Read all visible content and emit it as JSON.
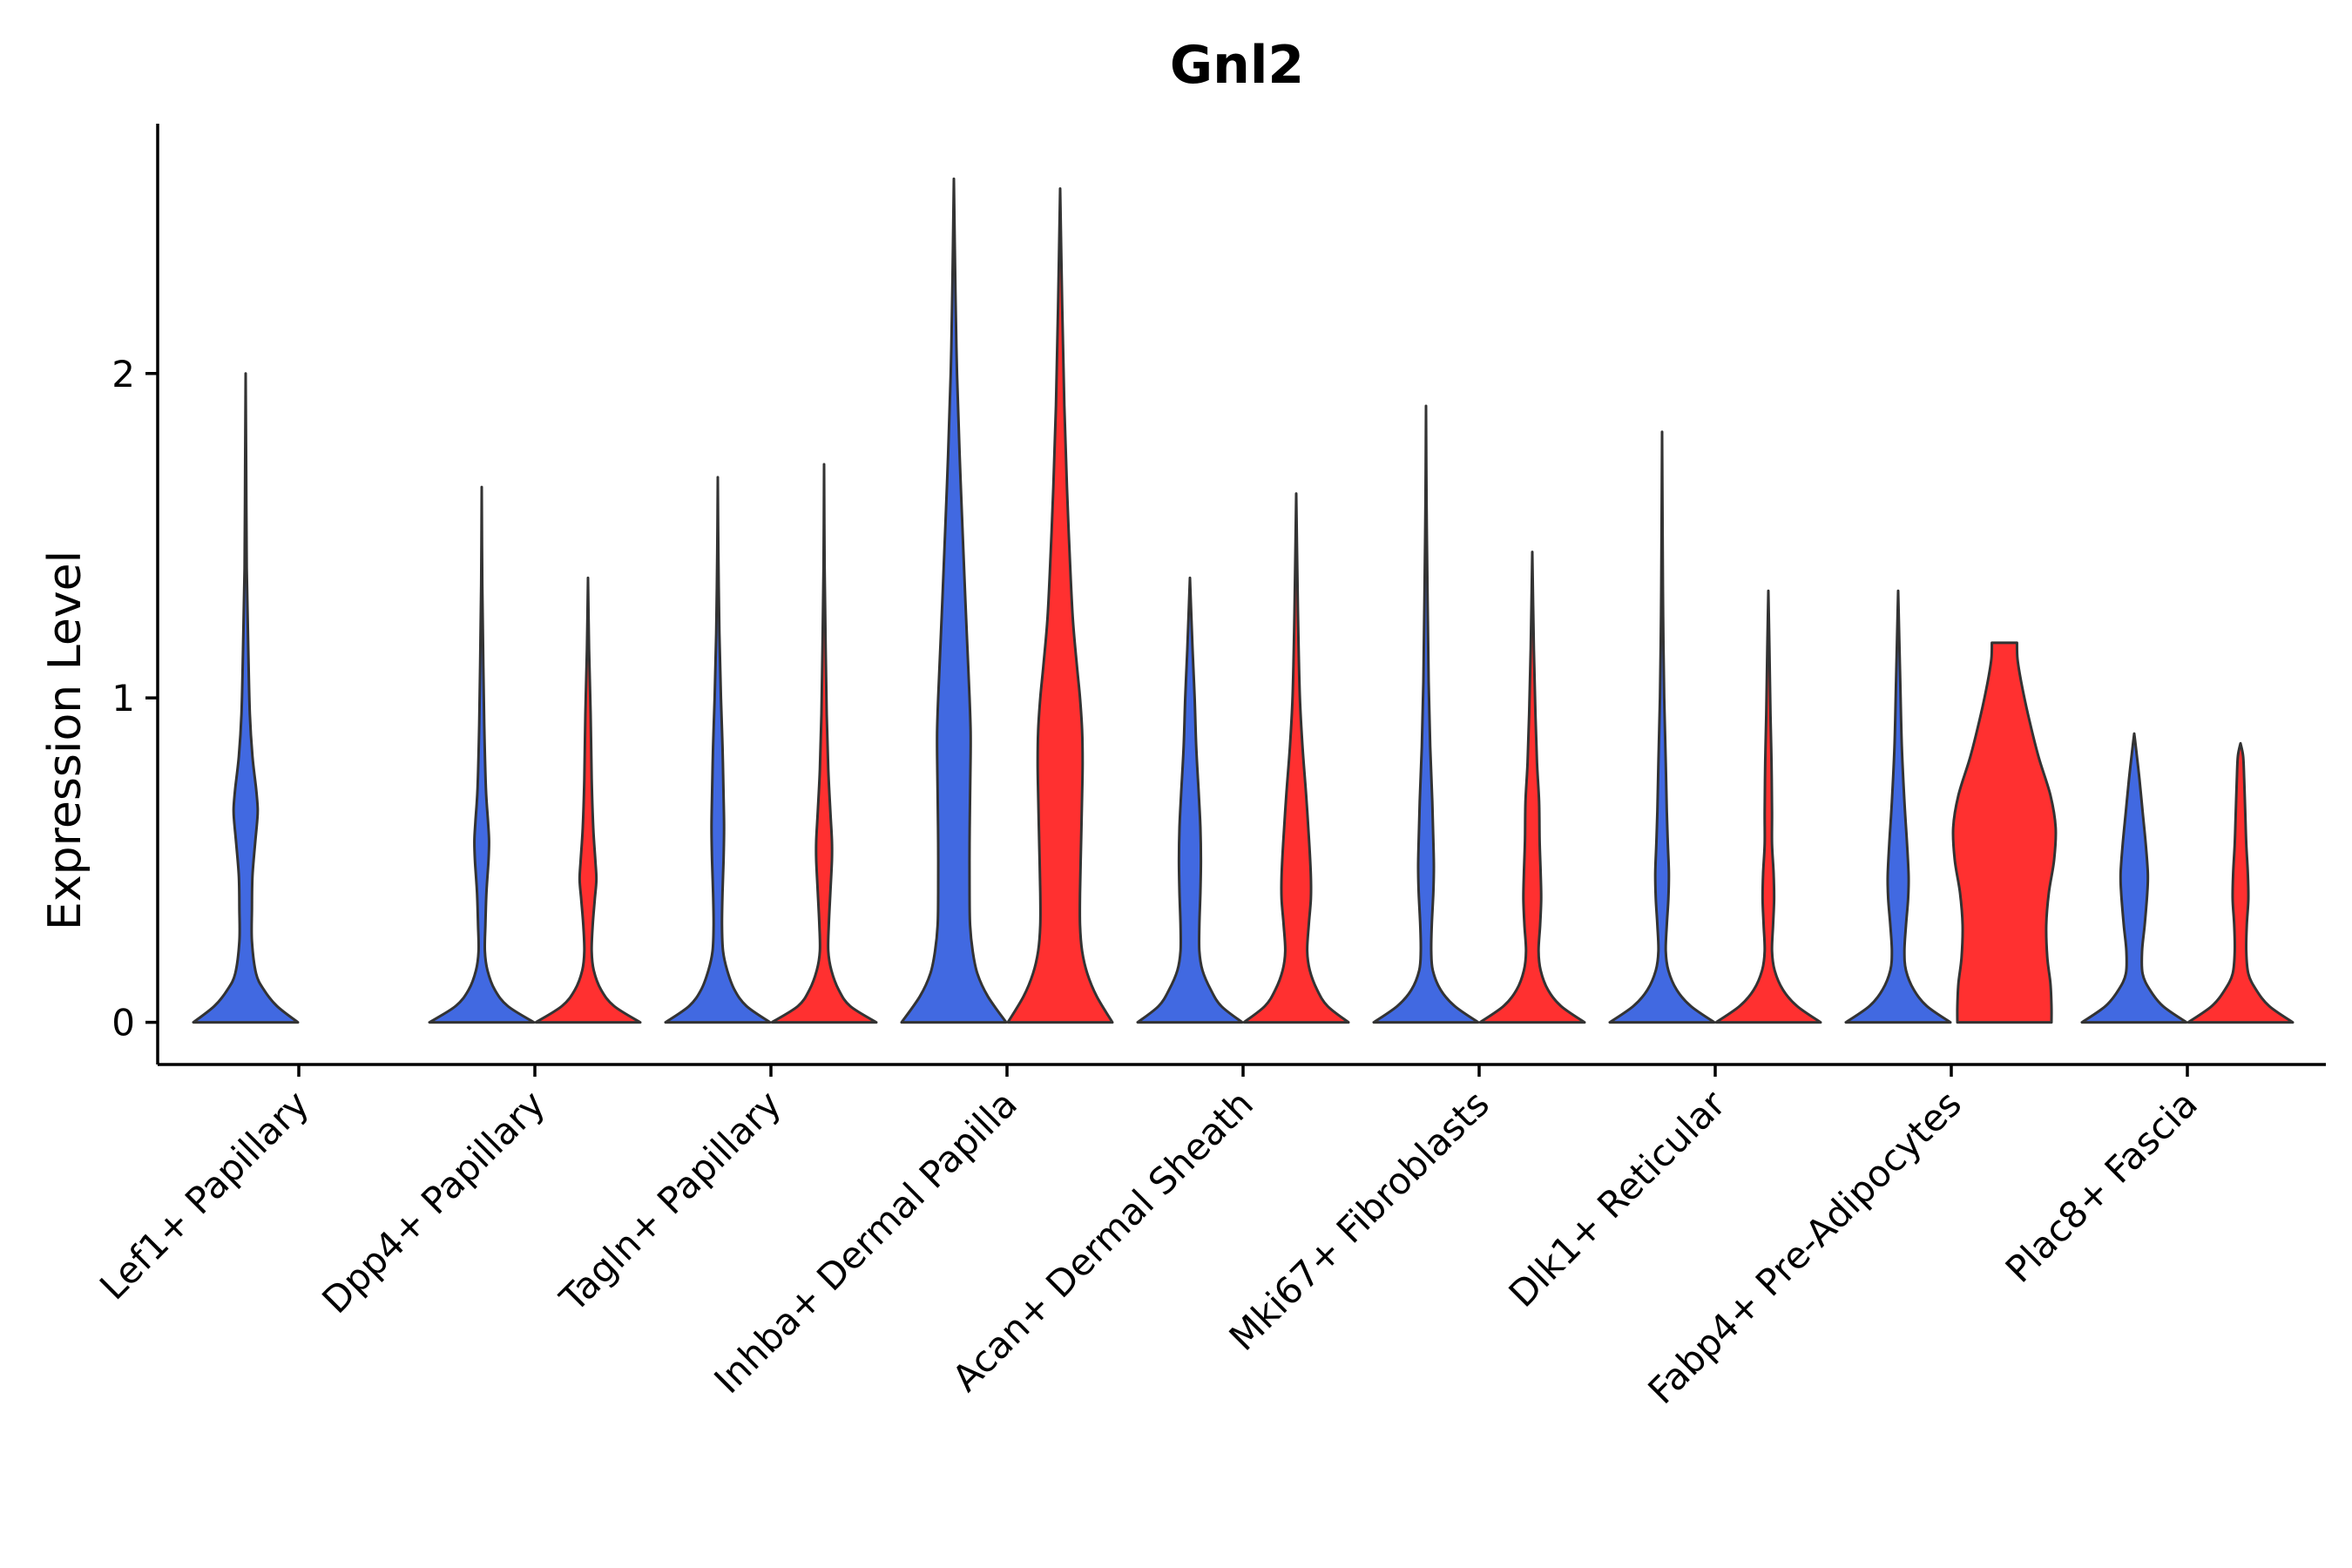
{
  "chart_data": {
    "type": "violin",
    "title": "Gnl2",
    "xlabel": "",
    "ylabel": "Expression Level",
    "ylim": [
      -0.13,
      2.77
    ],
    "yticks": [
      0,
      1,
      2
    ],
    "grid": false,
    "legend": "none",
    "colors": {
      "group1": "#4169E1",
      "group2": "#FF3030",
      "outline": "#333333"
    },
    "categories": [
      "Lef1+ Papillary",
      "Dpp4+ Papillary",
      "Tagln+ Papillary",
      "Inhba+ Dermal Papilla",
      "Acan+ Dermal Sheath",
      "Mki67+ Fibroblasts",
      "Dlk1+ Reticular",
      "Fabp4+ Pre-Adipocytes",
      "Plac8+ Fascia"
    ],
    "violins": [
      {
        "category": "Lef1+ Papillary",
        "group": "group1",
        "max": 2.0,
        "profile": [
          [
            0,
            1.0
          ],
          [
            0.05,
            0.6
          ],
          [
            0.1,
            0.35
          ],
          [
            0.15,
            0.2
          ],
          [
            0.25,
            0.12
          ],
          [
            0.35,
            0.12
          ],
          [
            0.45,
            0.13
          ],
          [
            0.55,
            0.18
          ],
          [
            0.62,
            0.22
          ],
          [
            0.66,
            0.23
          ],
          [
            0.72,
            0.2
          ],
          [
            0.82,
            0.13
          ],
          [
            0.95,
            0.08
          ],
          [
            1.15,
            0.05
          ],
          [
            1.4,
            0.02
          ],
          [
            1.7,
            0.01
          ],
          [
            2.0,
            0.0
          ]
        ]
      },
      {
        "category": "Dpp4+ Papillary",
        "group": "group1",
        "max": 1.65,
        "profile": [
          [
            0,
            1.0
          ],
          [
            0.05,
            0.5
          ],
          [
            0.1,
            0.25
          ],
          [
            0.16,
            0.11
          ],
          [
            0.22,
            0.06
          ],
          [
            0.3,
            0.07
          ],
          [
            0.4,
            0.09
          ],
          [
            0.5,
            0.13
          ],
          [
            0.56,
            0.14
          ],
          [
            0.62,
            0.12
          ],
          [
            0.72,
            0.08
          ],
          [
            0.9,
            0.05
          ],
          [
            1.1,
            0.03
          ],
          [
            1.35,
            0.01
          ],
          [
            1.65,
            0.0
          ]
        ]
      },
      {
        "category": "Dpp4+ Papillary",
        "group": "group2",
        "max": 1.37,
        "profile": [
          [
            0,
            1.0
          ],
          [
            0.05,
            0.5
          ],
          [
            0.1,
            0.25
          ],
          [
            0.16,
            0.11
          ],
          [
            0.22,
            0.07
          ],
          [
            0.3,
            0.09
          ],
          [
            0.38,
            0.13
          ],
          [
            0.44,
            0.16
          ],
          [
            0.5,
            0.14
          ],
          [
            0.6,
            0.1
          ],
          [
            0.75,
            0.07
          ],
          [
            0.95,
            0.05
          ],
          [
            1.15,
            0.02
          ],
          [
            1.37,
            0.0
          ]
        ]
      },
      {
        "category": "Tagln+ Papillary",
        "group": "group1",
        "max": 1.68,
        "profile": [
          [
            0,
            1.0
          ],
          [
            0.05,
            0.55
          ],
          [
            0.1,
            0.32
          ],
          [
            0.16,
            0.18
          ],
          [
            0.22,
            0.1
          ],
          [
            0.3,
            0.08
          ],
          [
            0.4,
            0.09
          ],
          [
            0.5,
            0.11
          ],
          [
            0.6,
            0.12
          ],
          [
            0.7,
            0.11
          ],
          [
            0.85,
            0.09
          ],
          [
            1.0,
            0.06
          ],
          [
            1.2,
            0.03
          ],
          [
            1.45,
            0.01
          ],
          [
            1.68,
            0.0
          ]
        ]
      },
      {
        "category": "Tagln+ Papillary",
        "group": "group2",
        "max": 1.72,
        "profile": [
          [
            0,
            1.0
          ],
          [
            0.05,
            0.5
          ],
          [
            0.1,
            0.28
          ],
          [
            0.16,
            0.14
          ],
          [
            0.22,
            0.08
          ],
          [
            0.3,
            0.09
          ],
          [
            0.4,
            0.12
          ],
          [
            0.5,
            0.15
          ],
          [
            0.56,
            0.15
          ],
          [
            0.65,
            0.12
          ],
          [
            0.78,
            0.08
          ],
          [
            0.95,
            0.05
          ],
          [
            1.15,
            0.03
          ],
          [
            1.4,
            0.01
          ],
          [
            1.72,
            0.0
          ]
        ]
      },
      {
        "category": "Inhba+ Dermal Papilla",
        "group": "group1",
        "max": 2.6,
        "profile": [
          [
            0,
            1.0
          ],
          [
            0.08,
            0.65
          ],
          [
            0.15,
            0.45
          ],
          [
            0.22,
            0.36
          ],
          [
            0.3,
            0.31
          ],
          [
            0.4,
            0.3
          ],
          [
            0.55,
            0.3
          ],
          [
            0.7,
            0.31
          ],
          [
            0.82,
            0.32
          ],
          [
            0.9,
            0.32
          ],
          [
            1.0,
            0.3
          ],
          [
            1.15,
            0.26
          ],
          [
            1.3,
            0.22
          ],
          [
            1.5,
            0.17
          ],
          [
            1.75,
            0.11
          ],
          [
            2.0,
            0.06
          ],
          [
            2.25,
            0.03
          ],
          [
            2.6,
            0.0
          ]
        ]
      },
      {
        "category": "Inhba+ Dermal Papilla",
        "group": "group2",
        "max": 2.57,
        "profile": [
          [
            0,
            1.0
          ],
          [
            0.08,
            0.7
          ],
          [
            0.15,
            0.52
          ],
          [
            0.22,
            0.42
          ],
          [
            0.3,
            0.38
          ],
          [
            0.4,
            0.38
          ],
          [
            0.55,
            0.4
          ],
          [
            0.7,
            0.42
          ],
          [
            0.8,
            0.43
          ],
          [
            0.9,
            0.42
          ],
          [
            1.0,
            0.38
          ],
          [
            1.1,
            0.32
          ],
          [
            1.25,
            0.24
          ],
          [
            1.45,
            0.18
          ],
          [
            1.65,
            0.13
          ],
          [
            1.9,
            0.08
          ],
          [
            2.2,
            0.04
          ],
          [
            2.57,
            0.0
          ]
        ]
      },
      {
        "category": "Acan+ Dermal Sheath",
        "group": "group1",
        "max": 1.37,
        "profile": [
          [
            0,
            1.0
          ],
          [
            0.05,
            0.6
          ],
          [
            0.1,
            0.4
          ],
          [
            0.16,
            0.24
          ],
          [
            0.22,
            0.18
          ],
          [
            0.3,
            0.18
          ],
          [
            0.4,
            0.2
          ],
          [
            0.5,
            0.21
          ],
          [
            0.6,
            0.2
          ],
          [
            0.7,
            0.17
          ],
          [
            0.85,
            0.12
          ],
          [
            1.0,
            0.09
          ],
          [
            1.15,
            0.05
          ],
          [
            1.37,
            0.0
          ]
        ]
      },
      {
        "category": "Acan+ Dermal Sheath",
        "group": "group2",
        "max": 1.63,
        "profile": [
          [
            0,
            1.0
          ],
          [
            0.05,
            0.6
          ],
          [
            0.1,
            0.4
          ],
          [
            0.16,
            0.26
          ],
          [
            0.22,
            0.21
          ],
          [
            0.3,
            0.24
          ],
          [
            0.38,
            0.28
          ],
          [
            0.45,
            0.28
          ],
          [
            0.55,
            0.25
          ],
          [
            0.7,
            0.19
          ],
          [
            0.85,
            0.12
          ],
          [
            1.0,
            0.07
          ],
          [
            1.2,
            0.04
          ],
          [
            1.4,
            0.02
          ],
          [
            1.63,
            0.0
          ]
        ]
      },
      {
        "category": "Mki67+ Fibroblasts",
        "group": "group1",
        "max": 1.9,
        "profile": [
          [
            0,
            1.0
          ],
          [
            0.05,
            0.55
          ],
          [
            0.1,
            0.28
          ],
          [
            0.16,
            0.13
          ],
          [
            0.22,
            0.1
          ],
          [
            0.3,
            0.11
          ],
          [
            0.4,
            0.14
          ],
          [
            0.48,
            0.15
          ],
          [
            0.56,
            0.14
          ],
          [
            0.68,
            0.12
          ],
          [
            0.85,
            0.08
          ],
          [
            1.05,
            0.05
          ],
          [
            1.3,
            0.03
          ],
          [
            1.6,
            0.01
          ],
          [
            1.9,
            0.0
          ]
        ]
      },
      {
        "category": "Mki67+ Fibroblasts",
        "group": "group2",
        "max": 1.45,
        "profile": [
          [
            0,
            1.0
          ],
          [
            0.05,
            0.55
          ],
          [
            0.1,
            0.3
          ],
          [
            0.16,
            0.16
          ],
          [
            0.22,
            0.12
          ],
          [
            0.3,
            0.15
          ],
          [
            0.38,
            0.17
          ],
          [
            0.46,
            0.16
          ],
          [
            0.56,
            0.14
          ],
          [
            0.68,
            0.13
          ],
          [
            0.8,
            0.09
          ],
          [
            0.95,
            0.06
          ],
          [
            1.15,
            0.03
          ],
          [
            1.45,
            0.0
          ]
        ]
      },
      {
        "category": "Dlk1+ Reticular",
        "group": "group1",
        "max": 1.82,
        "profile": [
          [
            0,
            1.0
          ],
          [
            0.05,
            0.55
          ],
          [
            0.1,
            0.28
          ],
          [
            0.16,
            0.12
          ],
          [
            0.22,
            0.07
          ],
          [
            0.3,
            0.09
          ],
          [
            0.38,
            0.12
          ],
          [
            0.46,
            0.13
          ],
          [
            0.55,
            0.11
          ],
          [
            0.65,
            0.09
          ],
          [
            0.8,
            0.07
          ],
          [
            1.0,
            0.04
          ],
          [
            1.25,
            0.02
          ],
          [
            1.5,
            0.01
          ],
          [
            1.82,
            0.0
          ]
        ]
      },
      {
        "category": "Dlk1+ Reticular",
        "group": "group2",
        "max": 1.33,
        "profile": [
          [
            0,
            1.0
          ],
          [
            0.05,
            0.55
          ],
          [
            0.1,
            0.28
          ],
          [
            0.16,
            0.12
          ],
          [
            0.22,
            0.07
          ],
          [
            0.3,
            0.09
          ],
          [
            0.38,
            0.11
          ],
          [
            0.46,
            0.1
          ],
          [
            0.55,
            0.07
          ],
          [
            0.65,
            0.07
          ],
          [
            0.8,
            0.06
          ],
          [
            0.95,
            0.04
          ],
          [
            1.15,
            0.02
          ],
          [
            1.33,
            0.0
          ]
        ]
      },
      {
        "category": "Fabp4+ Pre-Adipocytes",
        "group": "group1",
        "max": 1.33,
        "profile": [
          [
            0,
            1.0
          ],
          [
            0.05,
            0.55
          ],
          [
            0.1,
            0.3
          ],
          [
            0.16,
            0.15
          ],
          [
            0.22,
            0.12
          ],
          [
            0.3,
            0.15
          ],
          [
            0.38,
            0.19
          ],
          [
            0.45,
            0.2
          ],
          [
            0.55,
            0.17
          ],
          [
            0.68,
            0.12
          ],
          [
            0.85,
            0.07
          ],
          [
            1.05,
            0.04
          ],
          [
            1.33,
            0.0
          ]
        ]
      },
      {
        "category": "Fabp4+ Pre-Adipocytes",
        "group": "group2",
        "max": 1.17,
        "profile": [
          [
            0,
            0.9
          ],
          [
            0.05,
            0.9
          ],
          [
            0.12,
            0.88
          ],
          [
            0.2,
            0.82
          ],
          [
            0.3,
            0.8
          ],
          [
            0.4,
            0.85
          ],
          [
            0.5,
            0.95
          ],
          [
            0.6,
            0.98
          ],
          [
            0.7,
            0.88
          ],
          [
            0.82,
            0.65
          ],
          [
            0.95,
            0.45
          ],
          [
            1.05,
            0.32
          ],
          [
            1.12,
            0.25
          ],
          [
            1.17,
            0.24
          ]
        ]
      },
      {
        "category": "Plac8+ Fascia",
        "group": "group1",
        "max": 0.89,
        "profile": [
          [
            0,
            1.0
          ],
          [
            0.05,
            0.55
          ],
          [
            0.1,
            0.3
          ],
          [
            0.15,
            0.16
          ],
          [
            0.22,
            0.15
          ],
          [
            0.3,
            0.2
          ],
          [
            0.4,
            0.25
          ],
          [
            0.46,
            0.26
          ],
          [
            0.55,
            0.22
          ],
          [
            0.65,
            0.16
          ],
          [
            0.75,
            0.1
          ],
          [
            0.85,
            0.03
          ],
          [
            0.89,
            0.0
          ]
        ]
      },
      {
        "category": "Plac8+ Fascia",
        "group": "group2",
        "max": 0.86,
        "profile": [
          [
            0,
            1.0
          ],
          [
            0.05,
            0.55
          ],
          [
            0.1,
            0.3
          ],
          [
            0.15,
            0.15
          ],
          [
            0.22,
            0.11
          ],
          [
            0.3,
            0.12
          ],
          [
            0.38,
            0.15
          ],
          [
            0.46,
            0.14
          ],
          [
            0.55,
            0.11
          ],
          [
            0.65,
            0.09
          ],
          [
            0.75,
            0.07
          ],
          [
            0.82,
            0.05
          ],
          [
            0.86,
            0.0
          ]
        ]
      }
    ]
  }
}
